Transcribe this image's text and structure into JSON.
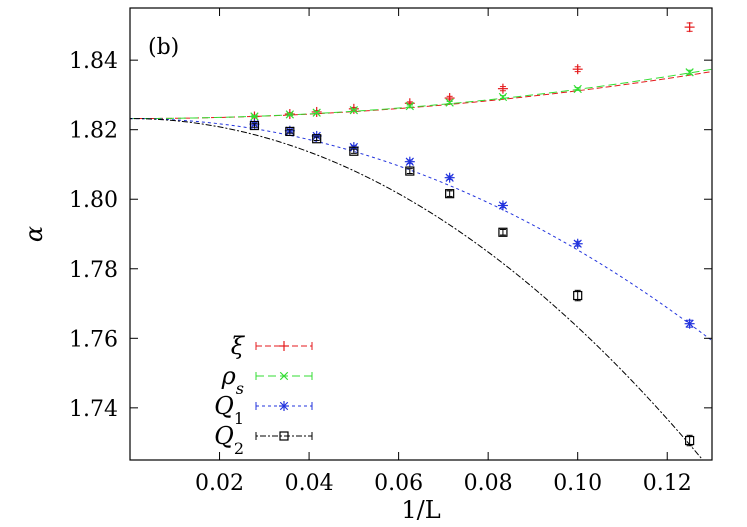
{
  "chart_data": {
    "type": "scatter",
    "panel_label": "(b)",
    "xlabel": "1/L",
    "ylabel": "α",
    "xlim": [
      0.0,
      0.13
    ],
    "ylim": [
      1.725,
      1.855
    ],
    "x_ticks": [
      0.02,
      0.04,
      0.06,
      0.08,
      0.1,
      0.12
    ],
    "x_tick_labels": [
      "0.02",
      "0.04",
      "0.06",
      "0.08",
      "0.10",
      "0.12"
    ],
    "y_ticks": [
      1.74,
      1.76,
      1.78,
      1.8,
      1.82,
      1.84
    ],
    "y_tick_labels": [
      "1.74",
      "1.76",
      "1.78",
      "1.80",
      "1.82",
      "1.84"
    ],
    "grid": false,
    "legend_position": "bottom-left",
    "series": [
      {
        "name": "ξ",
        "marker": "plus",
        "color": "#e41a1c",
        "x": [
          0.0278,
          0.0357,
          0.0417,
          0.05,
          0.0625,
          0.0714,
          0.0833,
          0.1,
          0.125
        ],
        "y": [
          1.8238,
          1.8245,
          1.8251,
          1.826,
          1.8276,
          1.8291,
          1.8318,
          1.8374,
          1.8495
        ],
        "err": [
          0.0004,
          0.0004,
          0.0004,
          0.0004,
          0.0004,
          0.0005,
          0.0006,
          0.0007,
          0.0012
        ],
        "fit": {
          "a": 1.8232,
          "b": 0.0,
          "c": 0.8
        }
      },
      {
        "name": "ρ_s",
        "marker": "x",
        "color": "#33dd33",
        "x": [
          0.0278,
          0.0357,
          0.0417,
          0.05,
          0.0625,
          0.0714,
          0.0833,
          0.1,
          0.125
        ],
        "y": [
          1.8238,
          1.8244,
          1.8249,
          1.8256,
          1.8268,
          1.8278,
          1.8294,
          1.8317,
          1.8365
        ],
        "err": [
          0.0003,
          0.0003,
          0.0003,
          0.0003,
          0.0003,
          0.0003,
          0.0004,
          0.0004,
          0.0006
        ],
        "fit": {
          "a": 1.8232,
          "b": 0.0,
          "c": 0.84
        }
      },
      {
        "name": "Q_1",
        "marker": "star",
        "color": "#2233dd",
        "x": [
          0.0278,
          0.0357,
          0.0417,
          0.05,
          0.0625,
          0.0714,
          0.0833,
          0.1,
          0.125
        ],
        "y": [
          1.8216,
          1.8197,
          1.8182,
          1.815,
          1.8108,
          1.8062,
          1.7982,
          1.7872,
          1.7642
        ],
        "err": [
          0.0004,
          0.0004,
          0.0004,
          0.0004,
          0.0005,
          0.0005,
          0.0006,
          0.0007,
          0.001
        ],
        "fit": {
          "a": 1.8232,
          "b": 0.0,
          "c": -3.78
        }
      },
      {
        "name": "Q_2",
        "marker": "square",
        "color": "#000000",
        "x": [
          0.0278,
          0.0357,
          0.0417,
          0.05,
          0.0625,
          0.0714,
          0.0833,
          0.1,
          0.125
        ],
        "y": [
          1.8212,
          1.8195,
          1.8174,
          1.8138,
          1.8081,
          1.8016,
          1.7905,
          1.7723,
          1.7306
        ],
        "err": [
          0.0005,
          0.0005,
          0.0005,
          0.0006,
          0.0007,
          0.0008,
          0.0008,
          0.0015,
          0.0015
        ],
        "fit": {
          "a": 1.8232,
          "b": 0.0,
          "c": -6.0
        }
      }
    ]
  }
}
